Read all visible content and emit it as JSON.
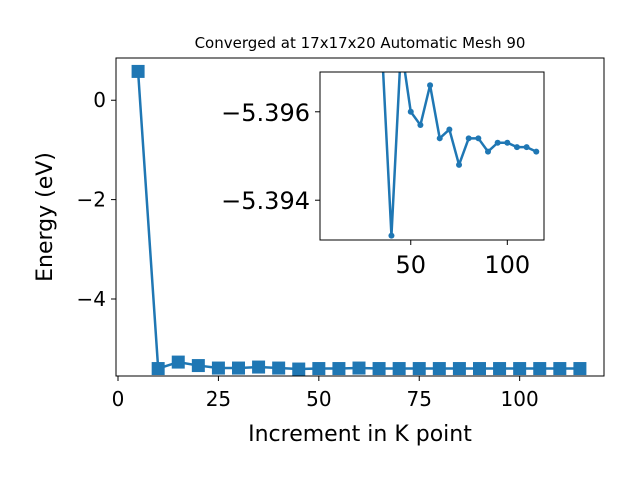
{
  "chart_data": [
    {
      "type": "line",
      "title": "Converged at 17x17x20 Automatic Mesh 90",
      "xlabel": "Increment in K point",
      "ylabel": "Energy (eV)",
      "xlim": [
        -0.5,
        121
      ],
      "ylim": [
        -5.55,
        0.85
      ],
      "xticks": [
        0,
        25,
        50,
        75,
        100
      ],
      "yticks": [
        0,
        -2,
        -4
      ],
      "xtick_labels": [
        "0",
        "25",
        "50",
        "75",
        "100"
      ],
      "ytick_labels": [
        "0",
        "−2",
        "−4"
      ],
      "color": "#1f77b4",
      "marker": "square",
      "grid": false,
      "series": [
        {
          "x": [
            5,
            10,
            15,
            20,
            25,
            30,
            35,
            40,
            45,
            50,
            55,
            60,
            65,
            70,
            75,
            80,
            85,
            90,
            95,
            100,
            105,
            110,
            115
          ],
          "y": [
            0.58,
            -5.4,
            -5.27,
            -5.34,
            -5.39,
            -5.39,
            -5.37,
            -5.39,
            -5.41,
            -5.4,
            -5.4,
            -5.39,
            -5.4,
            -5.4,
            -5.4,
            -5.4,
            -5.4,
            -5.4,
            -5.4,
            -5.4,
            -5.4,
            -5.4,
            -5.4
          ]
        }
      ]
    },
    {
      "type": "line",
      "title": "",
      "xlabel": "",
      "ylabel": "",
      "xlim": [
        3,
        119
      ],
      "ylim": [
        -5.3931,
        -5.3969
      ],
      "xticks": [
        50,
        100
      ],
      "yticks": [
        -5.396,
        -5.394
      ],
      "xtick_labels": [
        "50",
        "100"
      ],
      "ytick_labels": [
        "−5.396",
        "−5.394"
      ],
      "color": "#1f77b4",
      "marker": "circle",
      "grid": false,
      "series": [
        {
          "x": [
            35,
            40,
            45,
            50,
            55,
            60,
            65,
            70,
            75,
            80,
            85,
            90,
            95,
            100,
            105,
            110,
            115
          ],
          "y": [
            -5.3975,
            -5.3932,
            -5.3975,
            -5.396,
            -5.3957,
            -5.3966,
            -5.3954,
            -5.3956,
            -5.3948,
            -5.3954,
            -5.3954,
            -5.3951,
            -5.3953,
            -5.3953,
            -5.3952,
            -5.3952,
            -5.3951
          ]
        }
      ]
    }
  ]
}
